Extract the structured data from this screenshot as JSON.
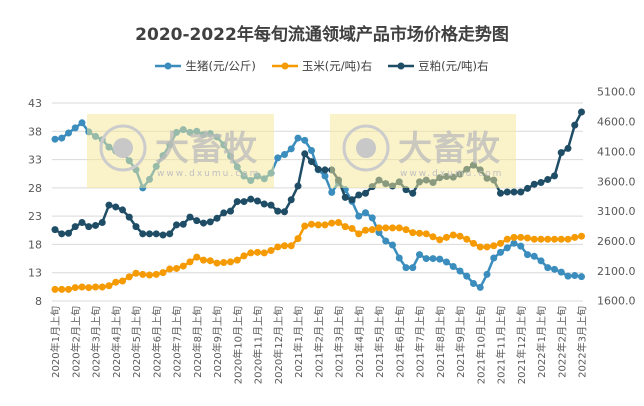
{
  "chart_data": {
    "type": "line",
    "title": "2020-2022年每旬流通领域产品市场价格走势图",
    "x_tick_labels": [
      "2020年1月上旬",
      "2020年2月上旬",
      "2020年3月上旬",
      "2020年4月上旬",
      "2020年5月上旬",
      "2020年6月上旬",
      "2020年7月上旬",
      "2020年8月上旬",
      "2020年9月上旬",
      "2020年10月上旬",
      "2020年11月上旬",
      "2020年12月上旬",
      "2021年1月上旬",
      "2021年2月上旬",
      "2021年3月上旬",
      "2021年4月上旬",
      "2021年5月上旬",
      "2021年6月上旬",
      "2021年7月上旬",
      "2021年8月上旬",
      "2021年9月上旬",
      "2021年10月上旬",
      "2021年11月上旬",
      "2021年12月上旬",
      "2022年1月上旬",
      "2022年2月上旬",
      "2022年3月上旬"
    ],
    "left_axis": {
      "ylim": [
        8,
        43
      ],
      "ticks": [
        "8",
        "13",
        "18",
        "23",
        "28",
        "33",
        "38",
        "43"
      ]
    },
    "right_axis": {
      "ylim": [
        1600,
        5100
      ],
      "ticks": [
        "1600.0",
        "2100.0",
        "2600.0",
        "3100.0",
        "3600.0",
        "4100.0",
        "4600.0",
        "5100.0"
      ]
    },
    "grid": true,
    "legend_position": "top",
    "series": [
      {
        "name": "生猪(元/公斤)",
        "axis": "left",
        "color": "#3b8dbd",
        "values": [
          36.6,
          36.8,
          37.7,
          38.6,
          39.5,
          37.9,
          37.1,
          36.5,
          35.2,
          34.5,
          34.2,
          32.8,
          31.2,
          28.0,
          29.5,
          31.8,
          33.7,
          35.6,
          37.8,
          38.3,
          37.8,
          38.0,
          37.4,
          37.6,
          37.0,
          35.6,
          33.6,
          31.7,
          30.1,
          29.3,
          30.1,
          29.6,
          30.6,
          33.3,
          33.9,
          34.9,
          36.8,
          36.4,
          34.6,
          31.2,
          30.1,
          27.2,
          28.9,
          27.7,
          25.6,
          23.0,
          23.6,
          22.7,
          20.1,
          18.6,
          17.9,
          15.6,
          13.9,
          13.9,
          16.2,
          15.5,
          15.5,
          15.4,
          14.9,
          14.1,
          13.3,
          12.4,
          11.1,
          10.4,
          12.7,
          15.6,
          16.6,
          17.4,
          18.2,
          17.7,
          16.2,
          15.9,
          15.1,
          13.9,
          13.6,
          13.1,
          12.4,
          12.5,
          12.3
        ]
      },
      {
        "name": "玉米(元/吨)右",
        "axis": "right",
        "color": "#f59a00",
        "values": [
          1790,
          1790,
          1790,
          1820,
          1830,
          1820,
          1830,
          1830,
          1850,
          1910,
          1930,
          2000,
          2060,
          2040,
          2030,
          2040,
          2070,
          2130,
          2140,
          2180,
          2250,
          2330,
          2280,
          2270,
          2230,
          2240,
          2250,
          2280,
          2350,
          2400,
          2410,
          2400,
          2440,
          2500,
          2520,
          2520,
          2640,
          2850,
          2880,
          2870,
          2870,
          2900,
          2910,
          2840,
          2810,
          2720,
          2780,
          2790,
          2820,
          2820,
          2820,
          2820,
          2790,
          2740,
          2730,
          2720,
          2670,
          2620,
          2660,
          2700,
          2680,
          2630,
          2560,
          2500,
          2500,
          2520,
          2560,
          2630,
          2660,
          2660,
          2650,
          2630,
          2630,
          2630,
          2630,
          2630,
          2630,
          2660,
          2680
        ]
      },
      {
        "name": "豆粕(元/吨)右",
        "axis": "right",
        "color": "#1f4d66",
        "values": [
          2790,
          2720,
          2730,
          2840,
          2910,
          2840,
          2860,
          2910,
          3200,
          3170,
          3120,
          3000,
          2840,
          2720,
          2720,
          2720,
          2700,
          2720,
          2870,
          2880,
          3000,
          2940,
          2900,
          2920,
          2980,
          3070,
          3100,
          3260,
          3260,
          3300,
          3270,
          3220,
          3200,
          3100,
          3090,
          3290,
          3520,
          4060,
          3930,
          3800,
          3790,
          3790,
          3620,
          3330,
          3290,
          3370,
          3400,
          3510,
          3620,
          3560,
          3520,
          3590,
          3460,
          3400,
          3590,
          3620,
          3580,
          3660,
          3680,
          3670,
          3720,
          3800,
          3870,
          3790,
          3650,
          3620,
          3400,
          3420,
          3420,
          3420,
          3480,
          3550,
          3580,
          3630,
          3690,
          4080,
          4150,
          4540,
          4760
        ]
      }
    ],
    "watermark": {
      "brand": "大畜牧",
      "site": "www.dxumu.com"
    }
  }
}
